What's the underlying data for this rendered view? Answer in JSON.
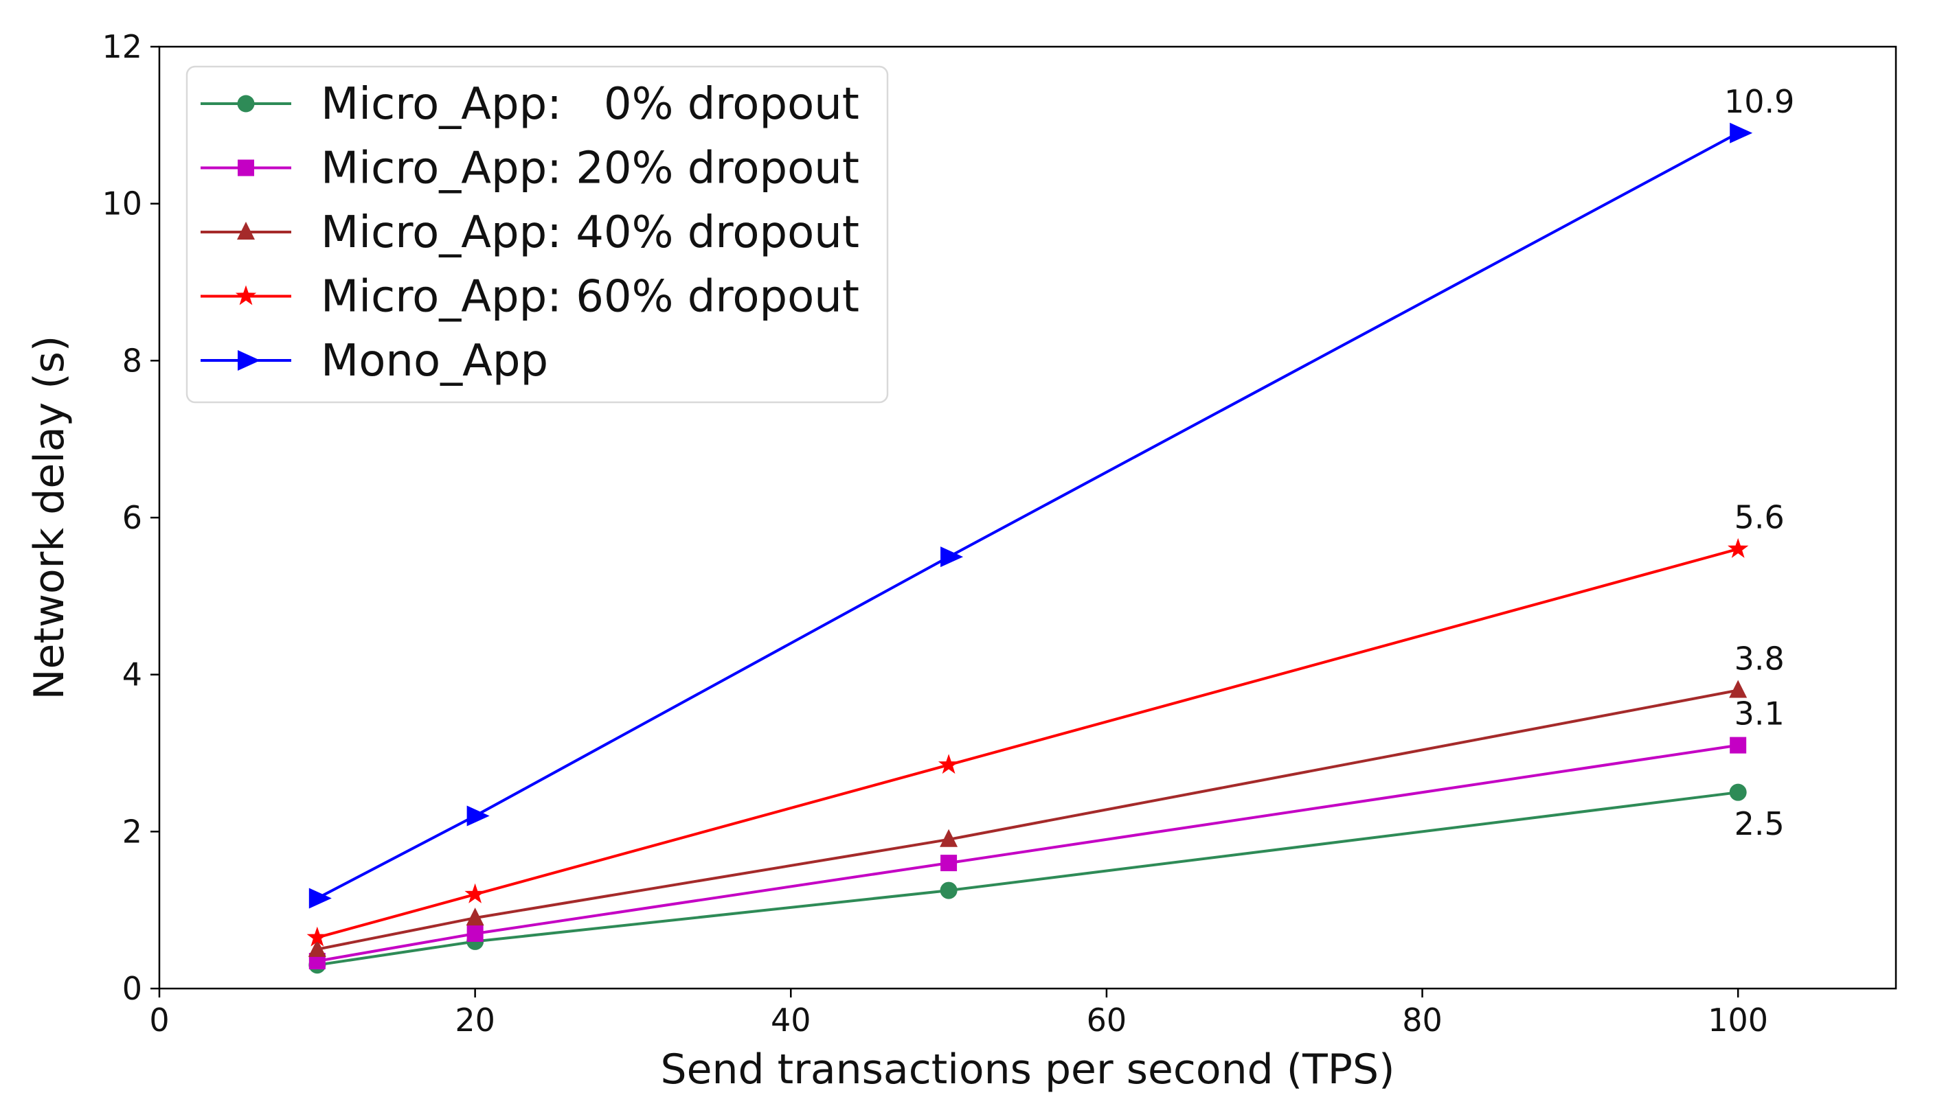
{
  "figure": {
    "background": "#ffffff",
    "spine_color": "#000000",
    "legend_border_color": "#d9d9d9"
  },
  "chart_data": {
    "type": "line",
    "title": "",
    "xlabel": "Send transactions per second (TPS)",
    "ylabel": "Network delay (s)",
    "x": [
      10,
      20,
      50,
      100
    ],
    "series": [
      {
        "name": "Micro_App:   0% dropout",
        "color": "#2E8B57",
        "marker": "circle",
        "values": [
          0.3,
          0.6,
          1.25,
          2.5
        ],
        "end_label": "2.5",
        "end_label_below": true
      },
      {
        "name": "Micro_App: 20% dropout",
        "color": "#C400C4",
        "marker": "square",
        "values": [
          0.35,
          0.7,
          1.6,
          3.1
        ],
        "end_label": "3.1",
        "end_label_below": false
      },
      {
        "name": "Micro_App: 40% dropout",
        "color": "#A52A2A",
        "marker": "triangle-up",
        "values": [
          0.5,
          0.9,
          1.9,
          3.8
        ],
        "end_label": "3.8",
        "end_label_below": false
      },
      {
        "name": "Micro_App: 60% dropout",
        "color": "#FF0000",
        "marker": "star",
        "values": [
          0.65,
          1.2,
          2.85,
          5.6
        ],
        "end_label": "5.6",
        "end_label_below": false
      },
      {
        "name": "Mono_App",
        "color": "#0000FF",
        "marker": "triangle-right",
        "values": [
          1.15,
          2.2,
          5.5,
          10.9
        ],
        "end_label": "10.9",
        "end_label_below": false
      }
    ],
    "xlim": [
      0,
      110
    ],
    "ylim": [
      0,
      12
    ],
    "xticks": [
      0,
      20,
      40,
      60,
      80,
      100
    ],
    "yticks": [
      0,
      2,
      4,
      6,
      8,
      10,
      12
    ],
    "grid": false,
    "legend_position": "upper left"
  }
}
